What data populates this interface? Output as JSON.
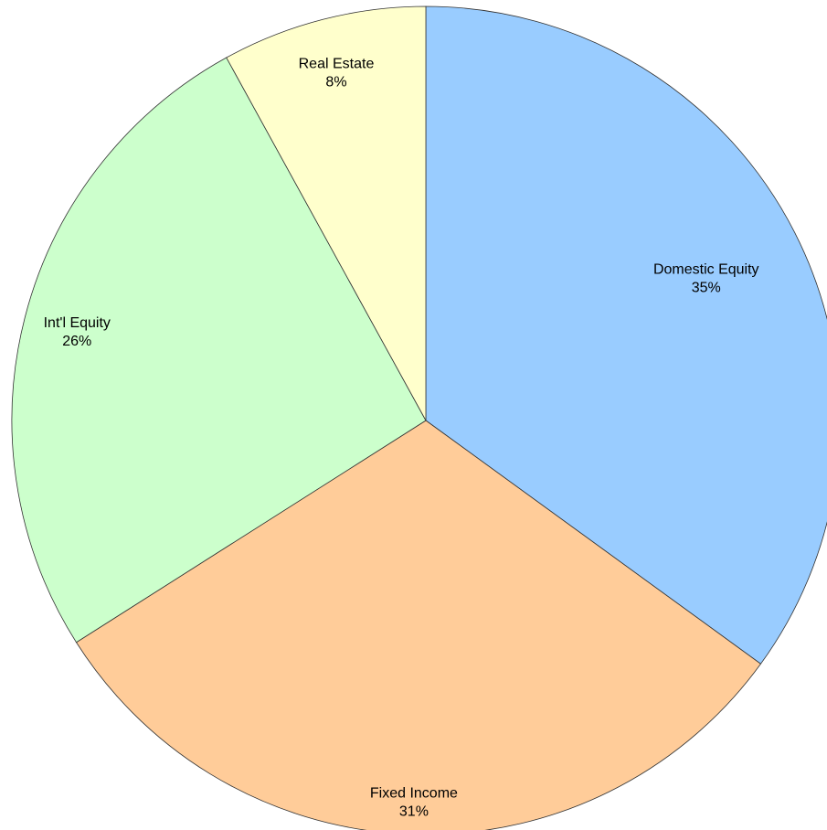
{
  "chart_data": {
    "type": "pie",
    "title": "",
    "start_angle_deg": 0,
    "direction": "clockwise",
    "slices": [
      {
        "name": "Domestic Equity",
        "value": 35,
        "label": "35%",
        "color": "#99ccff"
      },
      {
        "name": "Fixed Income",
        "value": 31,
        "label": "31%",
        "color": "#ffcc99"
      },
      {
        "name": "Int'l Equity",
        "value": 26,
        "label": "26%",
        "color": "#ccffcc"
      },
      {
        "name": "Real Estate",
        "value": 8,
        "label": "8%",
        "color": "#ffffcc"
      }
    ],
    "legend": "none"
  }
}
